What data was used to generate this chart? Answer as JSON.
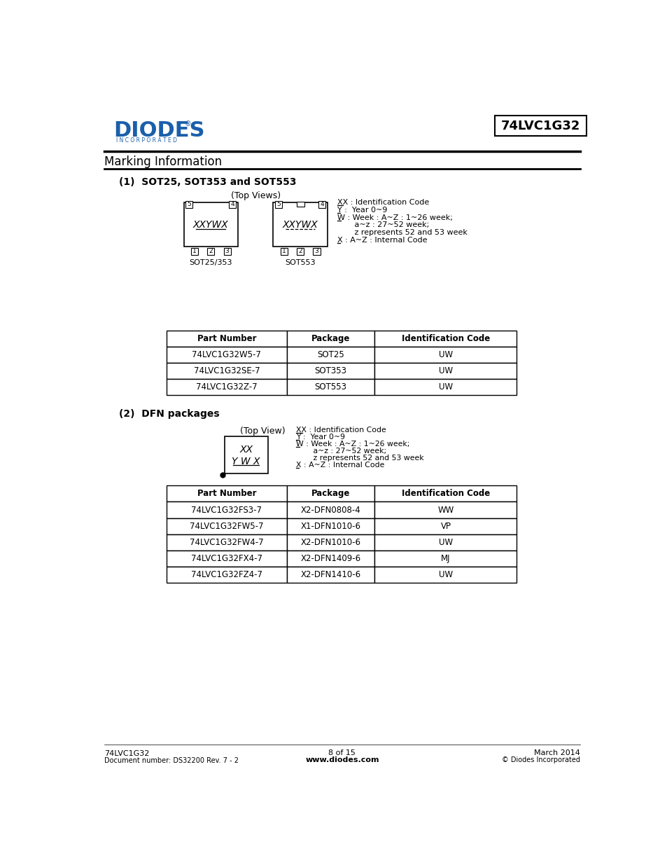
{
  "page_title": "74LVC1G32",
  "section_title": "Marking Information",
  "subsection1": "(1)  SOT25, SOT353 and SOT553",
  "subsection2": "(2)  DFN packages",
  "top_views_label": "(Top Views)",
  "top_view_label2": "(Top View)",
  "sot25_label": "SOT25/353",
  "sot553_label": "SOT553",
  "chip_text": "XXYWX",
  "dfn_chip_text1": "XX",
  "dfn_chip_text2": "Y W X",
  "legend_lines": [
    "XX : Identification Code",
    "Y :  Year 0~9",
    "W : Week : A~Z : 1~26 week;",
    "       a~z : 27~52 week;",
    "       z represents 52 and 53 week",
    "X : A~Z : Internal Code"
  ],
  "legend_lines2": [
    "XX : Identification Code",
    "Y :  Year 0~9",
    "W : Week : A~Z : 1~26 week;",
    "       a~z : 27~52 week;",
    "       z represents 52 and 53 week",
    "X : A~Z : Internal Code"
  ],
  "table1_headers": [
    "Part Number",
    "Package",
    "Identification Code"
  ],
  "table1_rows": [
    [
      "74LVC1G32W5-7",
      "SOT25",
      "UW"
    ],
    [
      "74LVC1G32SE-7",
      "SOT353",
      "UW"
    ],
    [
      "74LVC1G32Z-7",
      "SOT553",
      "UW"
    ]
  ],
  "table2_headers": [
    "Part Number",
    "Package",
    "Identification Code"
  ],
  "table2_rows": [
    [
      "74LVC1G32FS3-7",
      "X2-DFN0808-4",
      "WW"
    ],
    [
      "74LVC1G32FW5-7",
      "X1-DFN1010-6",
      "VP"
    ],
    [
      "74LVC1G32FW4-7",
      "X2-DFN1010-6",
      "UW"
    ],
    [
      "74LVC1G32FX4-7",
      "X2-DFN1409-6",
      "MJ"
    ],
    [
      "74LVC1G32FZ4-7",
      "X2-DFN1410-6",
      "UW"
    ]
  ],
  "footer_left1": "74LVC1G32",
  "footer_left2": "Document number: DS32200 Rev. 7 - 2",
  "footer_center1": "8 of 15",
  "footer_center2": "www.diodes.com",
  "footer_right1": "March 2014",
  "footer_right2": "© Diodes Incorporated",
  "diodes_blue": "#1b5faa",
  "text_color": "#000000",
  "table_border_color": "#000000",
  "bg_color": "#ffffff"
}
